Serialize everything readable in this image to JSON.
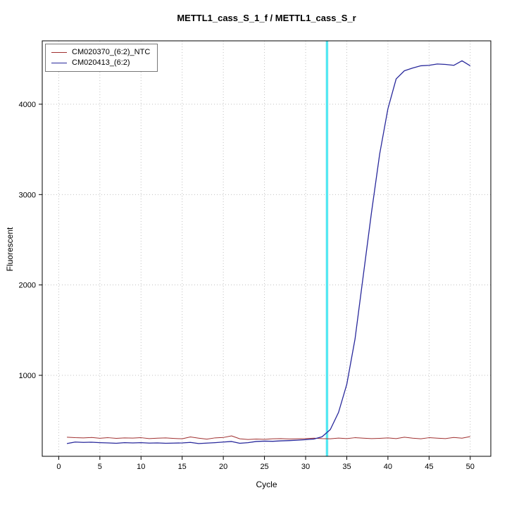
{
  "chart_data": {
    "type": "line",
    "title": "METTL1_cass_S_1_f / METTL1_cass_S_r",
    "xlabel": "Cycle",
    "ylabel": "Fluorescent",
    "xlim": [
      -2,
      52.5
    ],
    "ylim": [
      104,
      4701
    ],
    "xticks": [
      0,
      5,
      10,
      15,
      20,
      25,
      30,
      35,
      40,
      45,
      50
    ],
    "yticks": [
      1000,
      2000,
      3000,
      4000
    ],
    "grid": true,
    "grid_color": "#c0c0c0",
    "legend_position": "top-left",
    "x": [
      1,
      2,
      3,
      4,
      5,
      6,
      7,
      8,
      9,
      10,
      11,
      12,
      13,
      14,
      15,
      16,
      17,
      18,
      19,
      20,
      21,
      22,
      23,
      24,
      25,
      26,
      27,
      28,
      29,
      30,
      31,
      32,
      33,
      34,
      35,
      36,
      37,
      38,
      39,
      40,
      41,
      42,
      43,
      44,
      45,
      46,
      47,
      48,
      49,
      50
    ],
    "series": [
      {
        "name": "CM020370_(6:2)_NTC",
        "color": "#a03030",
        "values": [
          315,
          310,
          308,
          312,
          304,
          310,
          303,
          308,
          306,
          310,
          300,
          305,
          308,
          302,
          298,
          318,
          305,
          294,
          308,
          312,
          330,
          298,
          290,
          295,
          292,
          298,
          300,
          296,
          298,
          300,
          305,
          300,
          298,
          306,
          300,
          310,
          305,
          300,
          303,
          308,
          300,
          315,
          305,
          298,
          310,
          305,
          300,
          312,
          305,
          322
        ]
      },
      {
        "name": "CM020413_(6:2)",
        "color": "#28289b",
        "values": [
          245,
          262,
          258,
          260,
          255,
          252,
          248,
          255,
          252,
          255,
          250,
          252,
          248,
          250,
          252,
          258,
          245,
          250,
          255,
          262,
          268,
          248,
          255,
          268,
          272,
          270,
          275,
          278,
          282,
          288,
          295,
          320,
          400,
          590,
          900,
          1400,
          2100,
          2800,
          3450,
          3950,
          4280,
          4370,
          4400,
          4425,
          4430,
          4445,
          4440,
          4430,
          4480,
          4425
        ]
      }
    ],
    "threshold_line": {
      "x": 32.6,
      "color": "#00e0ee",
      "halo_color": "#cdf4f8"
    }
  }
}
